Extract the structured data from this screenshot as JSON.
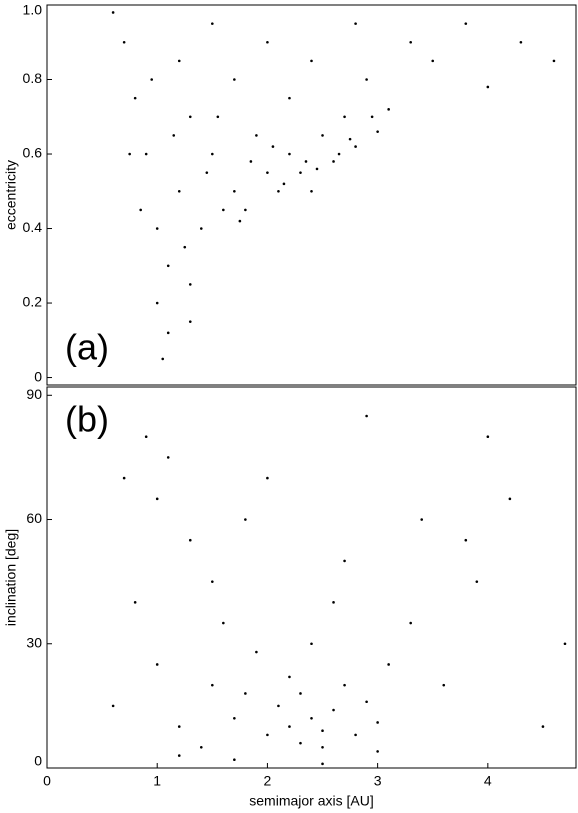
{
  "chart_data": [
    {
      "type": "scatter",
      "annotation": "(a)",
      "ylabel": "eccentricity",
      "color": "#000000",
      "xlim": [
        0,
        4.8
      ],
      "ylim": [
        -0.02,
        1
      ],
      "yticks": [
        0,
        0.2,
        0.4,
        0.6,
        0.8,
        {
          "value": 1,
          "label": "1.0"
        }
      ],
      "x": [
        0.7,
        0.8,
        0.9,
        1.0,
        1.0,
        1.05,
        1.1,
        1.2,
        1.2,
        1.3,
        1.3,
        1.4,
        1.5,
        1.5,
        1.6,
        1.7,
        1.7,
        1.8,
        1.9,
        2.0,
        2.0,
        2.1,
        2.2,
        2.2,
        2.3,
        2.4,
        2.4,
        2.5,
        2.6,
        2.7,
        2.8,
        2.9,
        3.0,
        3.1,
        3.3,
        3.5,
        3.8,
        4.0,
        4.3,
        4.6,
        0.6,
        1.1,
        0.95,
        1.3,
        2.8,
        1.45,
        1.75,
        2.05,
        2.35,
        2.65,
        2.95,
        1.25,
        0.75,
        0.85,
        1.15,
        1.55,
        1.85,
        2.15,
        2.45,
        2.75
      ],
      "y": [
        0.9,
        0.75,
        0.6,
        0.4,
        0.2,
        0.05,
        0.3,
        0.5,
        0.85,
        0.7,
        0.25,
        0.4,
        0.6,
        0.95,
        0.45,
        0.5,
        0.8,
        0.45,
        0.65,
        0.55,
        0.9,
        0.5,
        0.6,
        0.75,
        0.55,
        0.5,
        0.85,
        0.65,
        0.58,
        0.7,
        0.62,
        0.8,
        0.66,
        0.72,
        0.9,
        0.85,
        0.95,
        0.78,
        0.9,
        0.85,
        0.98,
        0.12,
        0.8,
        0.15,
        0.95,
        0.55,
        0.42,
        0.62,
        0.58,
        0.6,
        0.7,
        0.35,
        0.6,
        0.45,
        0.65,
        0.7,
        0.58,
        0.52,
        0.56,
        0.64
      ]
    },
    {
      "type": "scatter",
      "annotation": "(b)",
      "ylabel": "inclination [deg]",
      "xlabel": "semimajor axis [AU]",
      "color": "#000000",
      "xlim": [
        0,
        4.8
      ],
      "ylim": [
        0,
        92
      ],
      "yticks": [
        0,
        30,
        60,
        90
      ],
      "xticks": [
        0,
        1,
        2,
        3,
        4
      ],
      "x": [
        0.6,
        0.8,
        1.0,
        1.2,
        1.3,
        1.5,
        1.6,
        1.7,
        1.8,
        1.9,
        2.0,
        2.1,
        2.2,
        2.3,
        2.4,
        2.5,
        2.6,
        2.7,
        2.8,
        2.9,
        3.0,
        3.1,
        2.2,
        2.3,
        2.4,
        2.5,
        2.6,
        1.5,
        1.8,
        2.0,
        1.1,
        0.9,
        1.4,
        2.7,
        3.3,
        3.6,
        3.9,
        4.2,
        4.5,
        4.7,
        1.2,
        1.7,
        2.5,
        3.0,
        3.4,
        4.0,
        0.7,
        1.0,
        2.9,
        3.8
      ],
      "y": [
        15,
        40,
        25,
        10,
        55,
        20,
        35,
        12,
        18,
        28,
        8,
        15,
        10,
        6,
        12,
        9,
        14,
        20,
        8,
        16,
        11,
        25,
        22,
        18,
        30,
        5,
        40,
        45,
        60,
        70,
        75,
        80,
        5,
        50,
        35,
        20,
        45,
        65,
        10,
        30,
        3,
        2,
        1,
        4,
        60,
        80,
        70,
        65,
        85,
        55
      ]
    }
  ]
}
